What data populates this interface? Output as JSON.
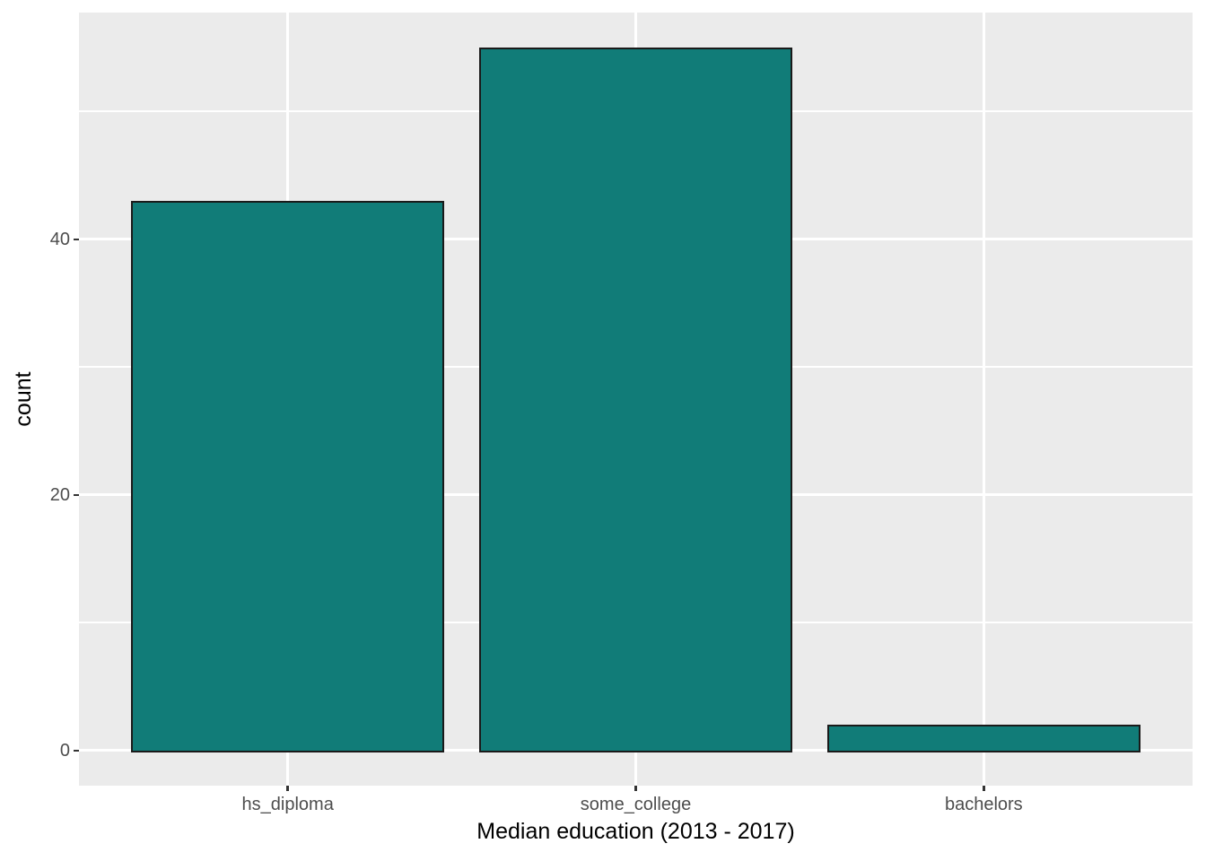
{
  "chart_data": {
    "type": "bar",
    "categories": [
      "hs_diploma",
      "some_college",
      "bachelors"
    ],
    "values": [
      43,
      55,
      2
    ],
    "title": "",
    "xlabel": "Median education (2013 - 2017)",
    "ylabel": "count",
    "ylim": [
      0,
      55
    ],
    "y_axis_expansion_mult": 0.05,
    "x_discrete_expansion_add": 0.6,
    "bar_width_fraction": 0.9,
    "y_major_ticks": [
      0,
      20,
      40
    ],
    "y_minor_ticks": [
      10,
      30,
      50
    ],
    "grid": "major-and-minor",
    "legend_position": "none",
    "colors": {
      "bar_fill": "#117C78",
      "bar_outline": "#1A1A1A",
      "panel_background": "#EBEBEB",
      "gridline": "#FFFFFF",
      "axis_text": "#4D4D4D",
      "axis_title": "#000000",
      "tick_mark": "#333333",
      "figure_background": "#FFFFFF"
    }
  }
}
